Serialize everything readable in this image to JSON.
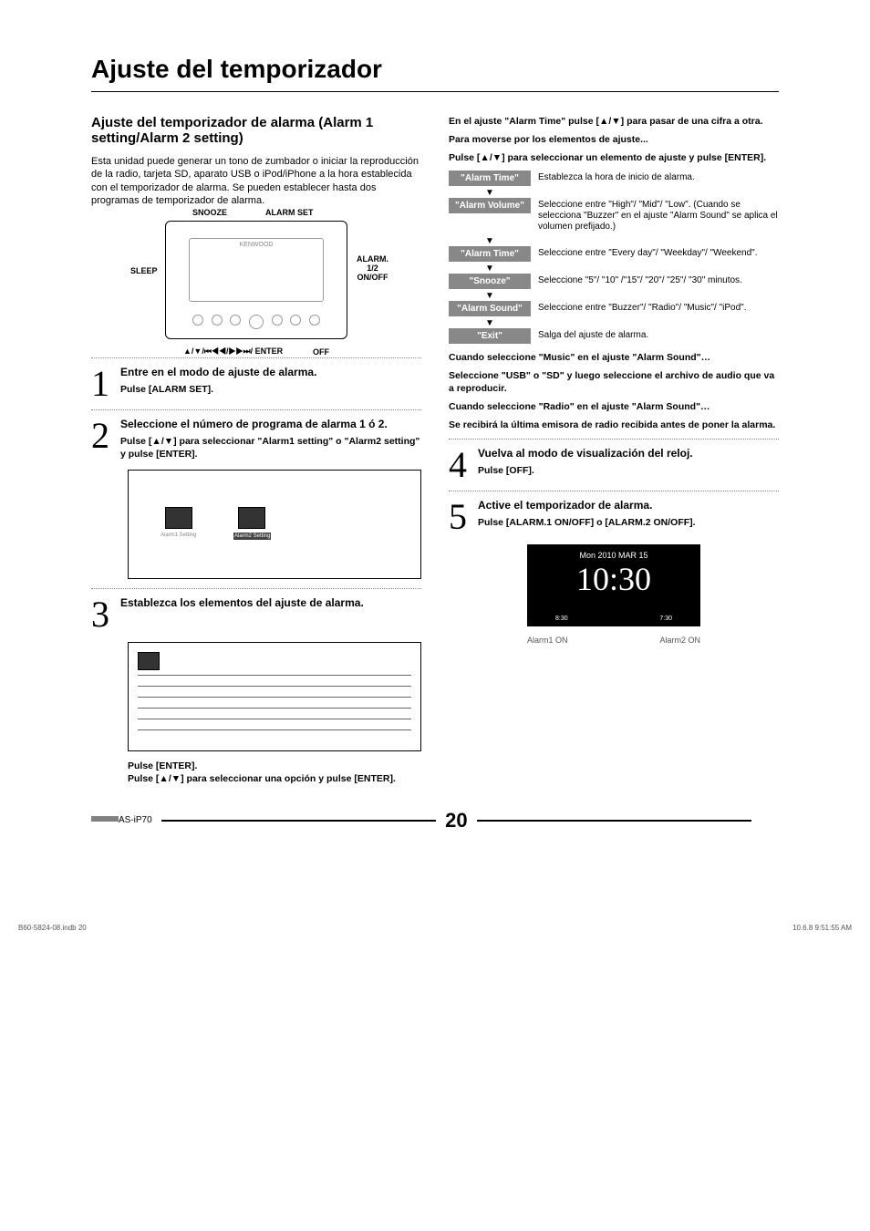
{
  "title": "Ajuste del temporizador",
  "h2": "Ajuste del temporizador de alarma (Alarm 1 setting/Alarm 2 setting)",
  "intro": "Esta unidad puede generar un tono de zumbador o iniciar la reproducción de la radio, tarjeta SD, aparato USB o iPod/iPhone a la hora establecida con el temporizador de alarma. Se pueden establecer hasta dos programas de temporizador de alarma.",
  "diagram": {
    "snooze": "SNOOZE",
    "alarmset": "ALARM SET",
    "sleep": "SLEEP",
    "alarm12": "ALARM. 1/2 ON/OFF",
    "bottom": "▲/▼/⏮◀◀/▶▶⏭/ ENTER",
    "off": "OFF"
  },
  "step1": {
    "title": "Entre en el modo de ajuste de alarma.",
    "sub": "Pulse [ALARM SET]."
  },
  "step2": {
    "title": "Seleccione el número de programa de alarma 1 ó 2.",
    "sub": "Pulse [▲/▼] para seleccionar \"Alarm1 setting\" o \"Alarm2 setting\" y pulse [ENTER]."
  },
  "step3": {
    "title": "Establezca los elementos del ajuste de alarma.",
    "sub1": "Pulse [ENTER].",
    "sub2": "Pulse [▲/▼] para seleccionar una opción y pulse [ENTER]."
  },
  "right": {
    "l1": "En el ajuste \"Alarm Time\" pulse [▲/▼] para pasar de una cifra a otra.",
    "l2": "Para moverse por los elementos de ajuste...",
    "l3": "Pulse [▲/▼] para seleccionar un elemento de ajuste y pulse [ENTER].",
    "rows": [
      {
        "k": "\"Alarm Time\"",
        "v": "Establezca la hora de inicio de alarma."
      },
      {
        "k": "\"Alarm Volume\"",
        "v": "Seleccione entre \"High\"/ \"Mid\"/ \"Low\". (Cuando se selecciona \"Buzzer\" en el ajuste \"Alarm Sound\" se aplica el volumen prefijado.)"
      },
      {
        "k": "\"Alarm Time\"",
        "v": "Seleccione entre \"Every day\"/ \"Weekday\"/ \"Weekend\"."
      },
      {
        "k": "\"Snooze\"",
        "v": "Seleccione \"5\"/ \"10\" /\"15\"/ \"20\"/ \"25\"/ \"30\" minutos."
      },
      {
        "k": "\"Alarm Sound\"",
        "v": "Seleccione entre \"Buzzer\"/ \"Radio\"/ \"Music\"/ \"iPod\"."
      },
      {
        "k": "\"Exit\"",
        "v": "Salga del ajuste de alarma."
      }
    ],
    "note1": "Cuando seleccione \"Music\" en el ajuste \"Alarm Sound\"…",
    "note2": "Seleccione \"USB\" o \"SD\" y luego seleccione el archivo de audio que va a reproducir.",
    "note3": "Cuando seleccione \"Radio\" en el ajuste \"Alarm Sound\"…",
    "note4": "Se recibirá la última emisora de radio recibida antes de poner la alarma."
  },
  "step4": {
    "title": "Vuelva al modo de visualización del reloj.",
    "sub": "Pulse [OFF]."
  },
  "step5": {
    "title": "Active el temporizador de alarma.",
    "sub": "Pulse [ALARM.1 ON/OFF] o [ALARM.2 ON/OFF]."
  },
  "clock": {
    "date": "Mon  2010  MAR  15",
    "time": "10:30",
    "a1t": "8:30",
    "a2t": "7:30",
    "a1": "Alarm1 ON",
    "a2": "Alarm2 ON"
  },
  "footer": {
    "model": "AS-iP70",
    "page": "20",
    "file": "B60-5824-08.indb   20",
    "ts": "10.6.8   9:51:55 AM"
  }
}
